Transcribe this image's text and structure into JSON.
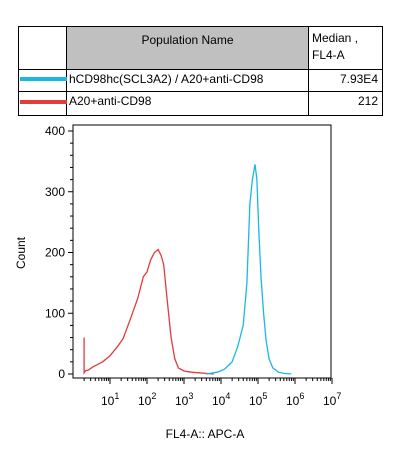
{
  "legend": {
    "col_name": "Population Name",
    "col_median_line1": "Median ,",
    "col_median_line2": "FL4-A",
    "rows": [
      {
        "name": "hCD98hc(SCL3A2) / A20+anti-CD98",
        "median": "7.93E4",
        "color": "#1ab8e0"
      },
      {
        "name": "A20+anti-CD98",
        "median": "212",
        "color": "#e23b3b"
      }
    ]
  },
  "chart_data": {
    "type": "line",
    "xlabel": "FL4-A:: APC-A",
    "ylabel": "Count",
    "xscale": "log",
    "ylim": [
      0,
      410
    ],
    "yticks": [
      0,
      100,
      200,
      300,
      400
    ],
    "xtick_labels": [
      {
        "base": "10",
        "exp": "1"
      },
      {
        "base": "10",
        "exp": "2"
      },
      {
        "base": "10",
        "exp": "3"
      },
      {
        "base": "10",
        "exp": "4"
      },
      {
        "base": "10",
        "exp": "5"
      },
      {
        "base": "10",
        "exp": "6"
      },
      {
        "base": "10",
        "exp": "7"
      }
    ],
    "grid": false,
    "series": [
      {
        "name": "A20+anti-CD98",
        "color": "#e23b3b",
        "x": [
          0.3,
          0.3,
          0.35,
          0.4,
          0.55,
          0.8,
          1.0,
          1.2,
          1.35,
          1.55,
          1.75,
          1.9,
          2.0,
          2.1,
          2.2,
          2.3,
          2.38,
          2.45,
          2.55,
          2.65,
          2.75,
          2.85,
          3.0,
          3.2,
          3.4,
          3.6,
          3.8
        ],
        "y": [
          60,
          2,
          6,
          6,
          12,
          20,
          30,
          45,
          58,
          90,
          125,
          160,
          168,
          188,
          200,
          205,
          195,
          180,
          120,
          60,
          25,
          10,
          5,
          3,
          2,
          1,
          0
        ]
      },
      {
        "name": "hCD98hc(SCL3A2) / A20+anti-CD98",
        "color": "#1ab8e0",
        "x": [
          3.6,
          3.9,
          4.1,
          4.3,
          4.45,
          4.6,
          4.7,
          4.78,
          4.85,
          4.92,
          4.97,
          5.02,
          5.08,
          5.15,
          5.22,
          5.3,
          5.4,
          5.55,
          5.7,
          5.9
        ],
        "y": [
          0,
          3,
          8,
          20,
          45,
          80,
          150,
          280,
          320,
          345,
          320,
          240,
          160,
          100,
          55,
          25,
          10,
          3,
          1,
          0
        ]
      }
    ]
  }
}
